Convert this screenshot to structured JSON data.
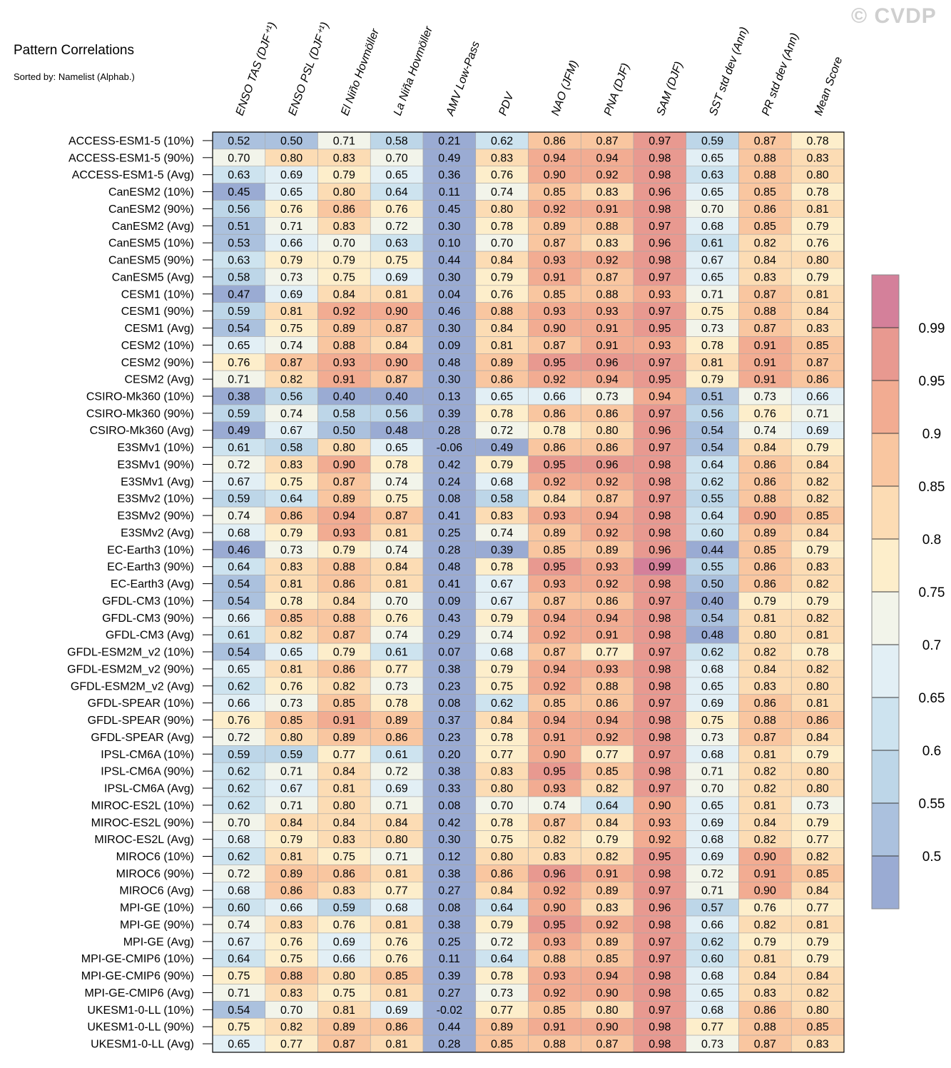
{
  "title": "Pattern Correlations",
  "subtitle": "Sorted by: Namelist (Alphab.)",
  "watermark": "© CVDP",
  "chart_data": {
    "type": "heatmap",
    "columns": [
      "ENSO TAS (DJF⁺¹)",
      "ENSO PSL (DJF⁺¹)",
      "El Niño Hovmöller",
      "La Niña Hovmöller",
      "AMV Low-Pass",
      "PDV",
      "NAO (JFM)",
      "PNA (DJF)",
      "SAM (DJF)",
      "SST std dev (Ann)",
      "PR std dev (Ann)",
      "Mean Score"
    ],
    "rows": [
      {
        "label": "ACCESS-ESM1-5 (10%)",
        "values": [
          0.52,
          0.5,
          0.71,
          0.58,
          0.21,
          0.62,
          0.86,
          0.87,
          0.97,
          0.59,
          0.87,
          0.78
        ]
      },
      {
        "label": "ACCESS-ESM1-5 (90%)",
        "values": [
          0.7,
          0.8,
          0.83,
          0.7,
          0.49,
          0.83,
          0.94,
          0.94,
          0.98,
          0.65,
          0.88,
          0.83
        ]
      },
      {
        "label": "ACCESS-ESM1-5 (Avg)",
        "values": [
          0.63,
          0.69,
          0.79,
          0.65,
          0.36,
          0.76,
          0.9,
          0.92,
          0.98,
          0.63,
          0.88,
          0.8
        ]
      },
      {
        "label": "CanESM2 (10%)",
        "values": [
          0.45,
          0.65,
          0.8,
          0.64,
          0.11,
          0.74,
          0.85,
          0.83,
          0.96,
          0.65,
          0.85,
          0.78
        ]
      },
      {
        "label": "CanESM2 (90%)",
        "values": [
          0.56,
          0.76,
          0.86,
          0.76,
          0.45,
          0.8,
          0.92,
          0.91,
          0.98,
          0.7,
          0.86,
          0.81
        ]
      },
      {
        "label": "CanESM2 (Avg)",
        "values": [
          0.51,
          0.71,
          0.83,
          0.72,
          0.3,
          0.78,
          0.89,
          0.88,
          0.97,
          0.68,
          0.85,
          0.79
        ]
      },
      {
        "label": "CanESM5 (10%)",
        "values": [
          0.53,
          0.66,
          0.7,
          0.63,
          0.1,
          0.7,
          0.87,
          0.83,
          0.96,
          0.61,
          0.82,
          0.76
        ]
      },
      {
        "label": "CanESM5 (90%)",
        "values": [
          0.63,
          0.79,
          0.79,
          0.75,
          0.44,
          0.84,
          0.93,
          0.92,
          0.98,
          0.67,
          0.84,
          0.8
        ]
      },
      {
        "label": "CanESM5 (Avg)",
        "values": [
          0.58,
          0.73,
          0.75,
          0.69,
          0.3,
          0.79,
          0.91,
          0.87,
          0.97,
          0.65,
          0.83,
          0.79
        ]
      },
      {
        "label": "CESM1 (10%)",
        "values": [
          0.47,
          0.69,
          0.84,
          0.81,
          0.04,
          0.76,
          0.85,
          0.88,
          0.93,
          0.71,
          0.87,
          0.81
        ]
      },
      {
        "label": "CESM1 (90%)",
        "values": [
          0.59,
          0.81,
          0.92,
          0.9,
          0.46,
          0.88,
          0.93,
          0.93,
          0.97,
          0.75,
          0.88,
          0.84
        ]
      },
      {
        "label": "CESM1 (Avg)",
        "values": [
          0.54,
          0.75,
          0.89,
          0.87,
          0.3,
          0.84,
          0.9,
          0.91,
          0.95,
          0.73,
          0.87,
          0.83
        ]
      },
      {
        "label": "CESM2 (10%)",
        "values": [
          0.65,
          0.74,
          0.88,
          0.84,
          0.09,
          0.81,
          0.87,
          0.91,
          0.93,
          0.78,
          0.91,
          0.85
        ]
      },
      {
        "label": "CESM2 (90%)",
        "values": [
          0.76,
          0.87,
          0.93,
          0.9,
          0.48,
          0.89,
          0.95,
          0.96,
          0.97,
          0.81,
          0.91,
          0.87
        ]
      },
      {
        "label": "CESM2 (Avg)",
        "values": [
          0.71,
          0.82,
          0.91,
          0.87,
          0.3,
          0.86,
          0.92,
          0.94,
          0.95,
          0.79,
          0.91,
          0.86
        ]
      },
      {
        "label": "CSIRO-Mk360 (10%)",
        "values": [
          0.38,
          0.56,
          0.4,
          0.4,
          0.13,
          0.65,
          0.66,
          0.73,
          0.94,
          0.51,
          0.73,
          0.66
        ]
      },
      {
        "label": "CSIRO-Mk360 (90%)",
        "values": [
          0.59,
          0.74,
          0.58,
          0.56,
          0.39,
          0.78,
          0.86,
          0.86,
          0.97,
          0.56,
          0.76,
          0.71
        ]
      },
      {
        "label": "CSIRO-Mk360 (Avg)",
        "values": [
          0.49,
          0.67,
          0.5,
          0.48,
          0.28,
          0.72,
          0.78,
          0.8,
          0.96,
          0.54,
          0.74,
          0.69
        ]
      },
      {
        "label": "E3SMv1 (10%)",
        "values": [
          0.61,
          0.58,
          0.8,
          0.65,
          -0.06,
          0.49,
          0.86,
          0.86,
          0.97,
          0.54,
          0.84,
          0.79
        ]
      },
      {
        "label": "E3SMv1 (90%)",
        "values": [
          0.72,
          0.83,
          0.9,
          0.78,
          0.42,
          0.79,
          0.95,
          0.96,
          0.98,
          0.64,
          0.86,
          0.84
        ]
      },
      {
        "label": "E3SMv1 (Avg)",
        "values": [
          0.67,
          0.75,
          0.87,
          0.74,
          0.24,
          0.68,
          0.92,
          0.92,
          0.98,
          0.62,
          0.86,
          0.82
        ]
      },
      {
        "label": "E3SMv2 (10%)",
        "values": [
          0.59,
          0.64,
          0.89,
          0.75,
          0.08,
          0.58,
          0.84,
          0.87,
          0.97,
          0.55,
          0.88,
          0.82
        ]
      },
      {
        "label": "E3SMv2 (90%)",
        "values": [
          0.74,
          0.86,
          0.94,
          0.87,
          0.41,
          0.83,
          0.93,
          0.94,
          0.98,
          0.64,
          0.9,
          0.85
        ]
      },
      {
        "label": "E3SMv2 (Avg)",
        "values": [
          0.68,
          0.79,
          0.93,
          0.81,
          0.25,
          0.74,
          0.89,
          0.92,
          0.98,
          0.6,
          0.89,
          0.84
        ]
      },
      {
        "label": "EC-Earth3 (10%)",
        "values": [
          0.46,
          0.73,
          0.79,
          0.74,
          0.28,
          0.39,
          0.85,
          0.89,
          0.96,
          0.44,
          0.85,
          0.79
        ]
      },
      {
        "label": "EC-Earth3 (90%)",
        "values": [
          0.64,
          0.83,
          0.88,
          0.84,
          0.48,
          0.78,
          0.95,
          0.93,
          0.99,
          0.55,
          0.86,
          0.83
        ]
      },
      {
        "label": "EC-Earth3 (Avg)",
        "values": [
          0.54,
          0.81,
          0.86,
          0.81,
          0.41,
          0.67,
          0.93,
          0.92,
          0.98,
          0.5,
          0.86,
          0.82
        ]
      },
      {
        "label": "GFDL-CM3 (10%)",
        "values": [
          0.54,
          0.78,
          0.84,
          0.7,
          0.09,
          0.67,
          0.87,
          0.86,
          0.97,
          0.4,
          0.79,
          0.79
        ]
      },
      {
        "label": "GFDL-CM3 (90%)",
        "values": [
          0.66,
          0.85,
          0.88,
          0.76,
          0.43,
          0.79,
          0.94,
          0.94,
          0.98,
          0.54,
          0.81,
          0.82
        ]
      },
      {
        "label": "GFDL-CM3 (Avg)",
        "values": [
          0.61,
          0.82,
          0.87,
          0.74,
          0.29,
          0.74,
          0.92,
          0.91,
          0.98,
          0.48,
          0.8,
          0.81
        ]
      },
      {
        "label": "GFDL-ESM2M_v2 (10%)",
        "values": [
          0.54,
          0.65,
          0.79,
          0.61,
          0.07,
          0.68,
          0.87,
          0.77,
          0.97,
          0.62,
          0.82,
          0.78
        ]
      },
      {
        "label": "GFDL-ESM2M_v2 (90%)",
        "values": [
          0.65,
          0.81,
          0.86,
          0.77,
          0.38,
          0.79,
          0.94,
          0.93,
          0.98,
          0.68,
          0.84,
          0.82
        ]
      },
      {
        "label": "GFDL-ESM2M_v2 (Avg)",
        "values": [
          0.62,
          0.76,
          0.82,
          0.73,
          0.23,
          0.75,
          0.92,
          0.88,
          0.98,
          0.65,
          0.83,
          0.8
        ]
      },
      {
        "label": "GFDL-SPEAR (10%)",
        "values": [
          0.66,
          0.73,
          0.85,
          0.78,
          0.08,
          0.62,
          0.85,
          0.86,
          0.97,
          0.69,
          0.86,
          0.81
        ]
      },
      {
        "label": "GFDL-SPEAR (90%)",
        "values": [
          0.76,
          0.85,
          0.91,
          0.89,
          0.37,
          0.84,
          0.94,
          0.94,
          0.98,
          0.75,
          0.88,
          0.86
        ]
      },
      {
        "label": "GFDL-SPEAR (Avg)",
        "values": [
          0.72,
          0.8,
          0.89,
          0.86,
          0.23,
          0.78,
          0.91,
          0.92,
          0.98,
          0.73,
          0.87,
          0.84
        ]
      },
      {
        "label": "IPSL-CM6A (10%)",
        "values": [
          0.59,
          0.59,
          0.77,
          0.61,
          0.2,
          0.77,
          0.9,
          0.77,
          0.97,
          0.68,
          0.81,
          0.79
        ]
      },
      {
        "label": "IPSL-CM6A (90%)",
        "values": [
          0.62,
          0.71,
          0.84,
          0.72,
          0.38,
          0.83,
          0.95,
          0.85,
          0.98,
          0.71,
          0.82,
          0.8
        ]
      },
      {
        "label": "IPSL-CM6A (Avg)",
        "values": [
          0.62,
          0.67,
          0.81,
          0.69,
          0.33,
          0.8,
          0.93,
          0.82,
          0.97,
          0.7,
          0.82,
          0.8
        ]
      },
      {
        "label": "MIROC-ES2L (10%)",
        "values": [
          0.62,
          0.71,
          0.8,
          0.71,
          0.08,
          0.7,
          0.74,
          0.64,
          0.9,
          0.65,
          0.81,
          0.73
        ]
      },
      {
        "label": "MIROC-ES2L (90%)",
        "values": [
          0.7,
          0.84,
          0.84,
          0.84,
          0.42,
          0.78,
          0.87,
          0.84,
          0.93,
          0.69,
          0.84,
          0.79
        ]
      },
      {
        "label": "MIROC-ES2L (Avg)",
        "values": [
          0.68,
          0.79,
          0.83,
          0.8,
          0.3,
          0.75,
          0.82,
          0.79,
          0.92,
          0.68,
          0.82,
          0.77
        ]
      },
      {
        "label": "MIROC6 (10%)",
        "values": [
          0.62,
          0.81,
          0.75,
          0.71,
          0.12,
          0.8,
          0.83,
          0.82,
          0.95,
          0.69,
          0.9,
          0.82
        ]
      },
      {
        "label": "MIROC6 (90%)",
        "values": [
          0.72,
          0.89,
          0.86,
          0.81,
          0.38,
          0.86,
          0.96,
          0.91,
          0.98,
          0.72,
          0.91,
          0.85
        ]
      },
      {
        "label": "MIROC6 (Avg)",
        "values": [
          0.68,
          0.86,
          0.83,
          0.77,
          0.27,
          0.84,
          0.92,
          0.89,
          0.97,
          0.71,
          0.9,
          0.84
        ]
      },
      {
        "label": "MPI-GE (10%)",
        "values": [
          0.6,
          0.66,
          0.59,
          0.68,
          0.08,
          0.64,
          0.9,
          0.83,
          0.96,
          0.57,
          0.76,
          0.77
        ]
      },
      {
        "label": "MPI-GE (90%)",
        "values": [
          0.74,
          0.83,
          0.76,
          0.81,
          0.38,
          0.79,
          0.95,
          0.92,
          0.98,
          0.66,
          0.82,
          0.81
        ]
      },
      {
        "label": "MPI-GE (Avg)",
        "values": [
          0.67,
          0.76,
          0.69,
          0.76,
          0.25,
          0.72,
          0.93,
          0.89,
          0.97,
          0.62,
          0.79,
          0.79
        ]
      },
      {
        "label": "MPI-GE-CMIP6 (10%)",
        "values": [
          0.64,
          0.75,
          0.66,
          0.76,
          0.11,
          0.64,
          0.88,
          0.85,
          0.97,
          0.6,
          0.81,
          0.79
        ]
      },
      {
        "label": "MPI-GE-CMIP6 (90%)",
        "values": [
          0.75,
          0.88,
          0.8,
          0.85,
          0.39,
          0.78,
          0.93,
          0.94,
          0.98,
          0.68,
          0.84,
          0.84
        ]
      },
      {
        "label": "MPI-GE-CMIP6 (Avg)",
        "values": [
          0.71,
          0.83,
          0.75,
          0.81,
          0.27,
          0.73,
          0.92,
          0.9,
          0.98,
          0.65,
          0.83,
          0.82
        ]
      },
      {
        "label": "UKESM1-0-LL (10%)",
        "values": [
          0.54,
          0.7,
          0.81,
          0.69,
          -0.02,
          0.77,
          0.85,
          0.8,
          0.97,
          0.68,
          0.86,
          0.8
        ]
      },
      {
        "label": "UKESM1-0-LL (90%)",
        "values": [
          0.75,
          0.82,
          0.89,
          0.86,
          0.44,
          0.89,
          0.91,
          0.9,
          0.98,
          0.77,
          0.88,
          0.85
        ]
      },
      {
        "label": "UKESM1-0-LL (Avg)",
        "values": [
          0.65,
          0.77,
          0.87,
          0.81,
          0.28,
          0.85,
          0.88,
          0.87,
          0.98,
          0.73,
          0.87,
          0.83
        ]
      }
    ],
    "value_format": "2 decimals",
    "colorbar": {
      "placement": "right",
      "tick_labels": [
        "0.5",
        "0.55",
        "0.6",
        "0.65",
        "0.7",
        "0.75",
        "0.8",
        "0.85",
        "0.9",
        "0.95",
        "0.99"
      ],
      "levels": [
        0.5,
        0.55,
        0.6,
        0.65,
        0.7,
        0.75,
        0.8,
        0.85,
        0.9,
        0.95,
        0.99
      ],
      "colors": [
        "#9aabd3",
        "#abc1de",
        "#bdd6e8",
        "#cde3ef",
        "#e2eff5",
        "#f2f4ea",
        "#fdeecb",
        "#fcdcb4",
        "#f9c6a0",
        "#f2ac92",
        "#e89990",
        "#d4809a"
      ]
    }
  }
}
